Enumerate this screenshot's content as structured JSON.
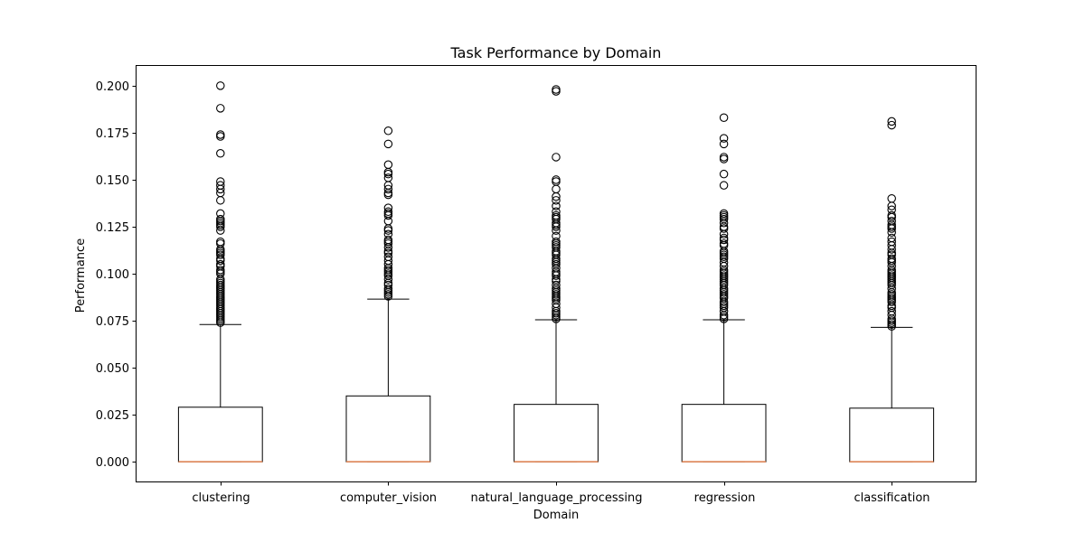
{
  "chart_data": {
    "type": "box",
    "title": "Task Performance by Domain",
    "xlabel": "Domain",
    "ylabel": "Performance",
    "ylim": [
      -0.0105,
      0.2105
    ],
    "yticks": [
      "0.000",
      "0.025",
      "0.050",
      "0.075",
      "0.100",
      "0.125",
      "0.150",
      "0.175",
      "0.200"
    ],
    "grid": false,
    "colors": {
      "box": "#000000",
      "median": "#e1814e",
      "background": "#ffffff"
    },
    "categories": [
      "clustering",
      "computer_vision",
      "natural_language_processing",
      "regression",
      "classification"
    ],
    "boxes": [
      {
        "name": "clustering",
        "whisker_low": 0.0,
        "q1": 0.0,
        "median": 0.0,
        "q3": 0.029,
        "whisker_high": 0.073,
        "outliers": [
          0.074,
          0.075,
          0.076,
          0.077,
          0.078,
          0.079,
          0.08,
          0.081,
          0.082,
          0.083,
          0.084,
          0.085,
          0.086,
          0.087,
          0.088,
          0.089,
          0.09,
          0.091,
          0.092,
          0.093,
          0.094,
          0.095,
          0.096,
          0.097,
          0.1,
          0.101,
          0.102,
          0.104,
          0.105,
          0.107,
          0.108,
          0.11,
          0.111,
          0.112,
          0.113,
          0.116,
          0.117,
          0.123,
          0.125,
          0.126,
          0.127,
          0.128,
          0.129,
          0.132,
          0.139,
          0.143,
          0.145,
          0.147,
          0.149,
          0.164,
          0.173,
          0.174,
          0.188,
          0.2
        ]
      },
      {
        "name": "computer_vision",
        "whisker_low": 0.0,
        "q1": 0.0,
        "median": 0.0,
        "q3": 0.035,
        "whisker_high": 0.0865,
        "outliers": [
          0.088,
          0.089,
          0.09,
          0.091,
          0.092,
          0.094,
          0.095,
          0.097,
          0.099,
          0.1,
          0.101,
          0.102,
          0.103,
          0.105,
          0.107,
          0.109,
          0.111,
          0.112,
          0.114,
          0.116,
          0.117,
          0.118,
          0.121,
          0.123,
          0.124,
          0.128,
          0.131,
          0.132,
          0.133,
          0.135,
          0.142,
          0.143,
          0.145,
          0.147,
          0.151,
          0.153,
          0.154,
          0.158,
          0.169,
          0.176
        ]
      },
      {
        "name": "natural_language_processing",
        "whisker_low": 0.0,
        "q1": 0.0,
        "median": 0.0,
        "q3": 0.0305,
        "whisker_high": 0.0755,
        "outliers": [
          0.076,
          0.077,
          0.078,
          0.079,
          0.08,
          0.082,
          0.084,
          0.086,
          0.087,
          0.088,
          0.089,
          0.09,
          0.091,
          0.092,
          0.094,
          0.096,
          0.097,
          0.099,
          0.1,
          0.101,
          0.103,
          0.105,
          0.106,
          0.107,
          0.108,
          0.11,
          0.111,
          0.112,
          0.114,
          0.115,
          0.116,
          0.117,
          0.12,
          0.123,
          0.125,
          0.126,
          0.127,
          0.129,
          0.13,
          0.131,
          0.133,
          0.136,
          0.139,
          0.141,
          0.145,
          0.149,
          0.15,
          0.162,
          0.197,
          0.198
        ]
      },
      {
        "name": "regression",
        "whisker_low": 0.0,
        "q1": 0.0,
        "median": 0.0,
        "q3": 0.0305,
        "whisker_high": 0.0755,
        "outliers": [
          0.076,
          0.077,
          0.078,
          0.08,
          0.082,
          0.083,
          0.084,
          0.085,
          0.087,
          0.088,
          0.089,
          0.09,
          0.091,
          0.092,
          0.094,
          0.095,
          0.096,
          0.097,
          0.098,
          0.099,
          0.1,
          0.101,
          0.102,
          0.104,
          0.106,
          0.108,
          0.109,
          0.11,
          0.111,
          0.112,
          0.115,
          0.116,
          0.118,
          0.119,
          0.121,
          0.124,
          0.125,
          0.127,
          0.129,
          0.13,
          0.131,
          0.132,
          0.147,
          0.153,
          0.161,
          0.162,
          0.169,
          0.172,
          0.183
        ]
      },
      {
        "name": "classification",
        "whisker_low": 0.0,
        "q1": 0.0,
        "median": 0.0,
        "q3": 0.0285,
        "whisker_high": 0.0715,
        "outliers": [
          0.072,
          0.073,
          0.074,
          0.075,
          0.076,
          0.078,
          0.08,
          0.082,
          0.083,
          0.085,
          0.086,
          0.087,
          0.088,
          0.089,
          0.09,
          0.092,
          0.094,
          0.095,
          0.096,
          0.097,
          0.098,
          0.099,
          0.1,
          0.101,
          0.102,
          0.104,
          0.106,
          0.107,
          0.108,
          0.11,
          0.111,
          0.113,
          0.115,
          0.117,
          0.119,
          0.122,
          0.124,
          0.125,
          0.126,
          0.128,
          0.13,
          0.131,
          0.134,
          0.136,
          0.14,
          0.179,
          0.181
        ]
      }
    ]
  }
}
